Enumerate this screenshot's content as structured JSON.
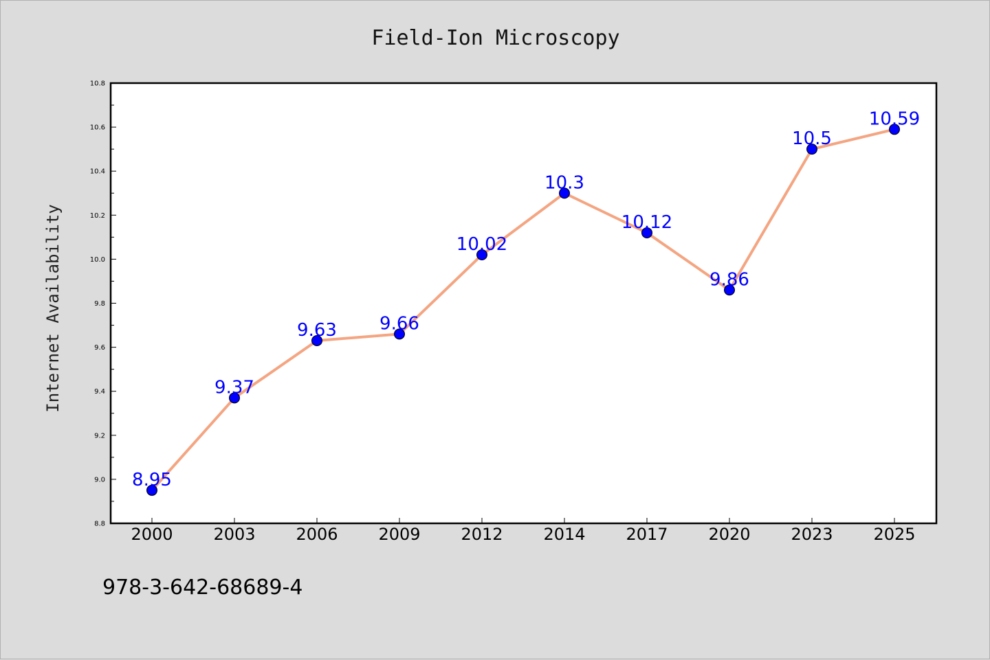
{
  "chart_data": {
    "type": "line",
    "title": "Field-Ion Microscopy",
    "xlabel": "",
    "ylabel": "Internet Availability",
    "categories": [
      "2000",
      "2003",
      "2006",
      "2009",
      "2012",
      "2014",
      "2017",
      "2020",
      "2023",
      "2025"
    ],
    "series": [
      {
        "values": [
          8.95,
          9.37,
          9.63,
          9.66,
          10.02,
          10.3,
          10.12,
          9.86,
          10.5,
          10.59
        ],
        "data_labels": [
          "8.95",
          "9.37",
          "9.63",
          "9.66",
          "10.02",
          "10.3",
          "10.12",
          "9.86",
          "10.5",
          "10.59"
        ]
      }
    ],
    "ylim": [
      8.8,
      10.8
    ],
    "yticks": [
      "8.8",
      "9.0",
      "9.2",
      "9.4",
      "9.6",
      "9.8",
      "10.0",
      "10.2",
      "10.4",
      "10.6",
      "10.8"
    ],
    "grid": false,
    "legend": "none",
    "colors": {
      "line": "#f4a582",
      "marker": "#0000ff",
      "data_label": "#0000ff",
      "background": "#dcdcdc",
      "plot_background": "#ffffff"
    }
  },
  "footer": {
    "isbn": "978-3-642-68689-4"
  }
}
